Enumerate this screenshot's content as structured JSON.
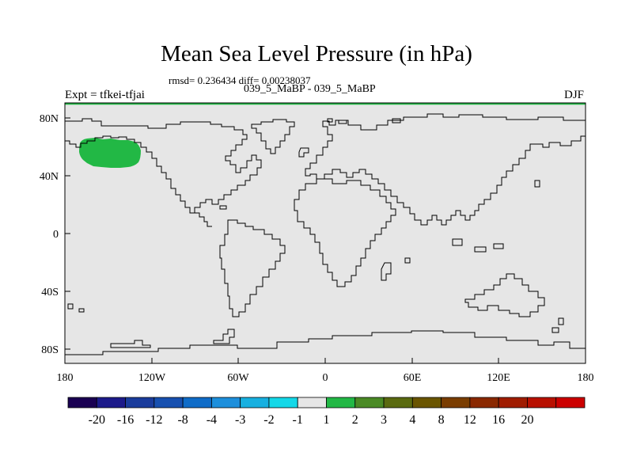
{
  "title": "Mean Sea Level Pressure (in hPa)",
  "stats_text": "rmsd= 0.236434  diff= 0.00238037",
  "left_label": "Expt = tfkei-tfjai",
  "center_label": "039_5_MaBP - 039_5_MaBP",
  "right_label": "DJF",
  "colors": {
    "ocean_fill": "#e6e6e6",
    "coast_line": "#000000",
    "anomaly_fill": "#22b845",
    "frame_top": "#22b845"
  },
  "axes": {
    "lat_ticks": [
      "80N",
      "40N",
      "0",
      "40S",
      "80S"
    ],
    "lon_ticks": [
      "180",
      "120W",
      "60W",
      "0",
      "60E",
      "120E",
      "180"
    ]
  },
  "colorbar": {
    "colors": [
      "#1a0052",
      "#1c1a8a",
      "#1a3c9c",
      "#1750b0",
      "#0f6cc8",
      "#1d8fdc",
      "#17b0e0",
      "#14d8e8",
      "#e6e6e6",
      "#22b845",
      "#4a8a25",
      "#5a6a10",
      "#6a5500",
      "#7a3d00",
      "#8a2800",
      "#a01c00",
      "#b81000",
      "#cc0000"
    ],
    "labels": [
      "-20",
      "-16",
      "-12",
      "-8",
      "-4",
      "-3",
      "-2",
      "-1",
      "1",
      "2",
      "3",
      "4",
      "8",
      "12",
      "16",
      "20"
    ]
  },
  "chart_data": {
    "type": "heatmap",
    "title": "Mean Sea Level Pressure (in hPa)",
    "xlabel": "",
    "ylabel": "",
    "xlim": [
      -180,
      180
    ],
    "ylim": [
      -90,
      90
    ],
    "x_ticks": [
      "180",
      "120W",
      "60W",
      "0",
      "60E",
      "120E",
      "180"
    ],
    "y_ticks": [
      "80N",
      "40N",
      "0",
      "40S",
      "80S"
    ],
    "contour_levels": [
      -20,
      -16,
      -12,
      -8,
      -4,
      -3,
      -2,
      -1,
      1,
      2,
      3,
      4,
      8,
      12,
      16,
      20
    ],
    "anomalies": [
      {
        "region": "North Pacific",
        "lon_range": [
          -176,
          -140
        ],
        "lat_range": [
          48,
          65
        ],
        "value_range": [
          1,
          2
        ]
      }
    ],
    "background_value_range": [
      -1,
      1
    ]
  }
}
